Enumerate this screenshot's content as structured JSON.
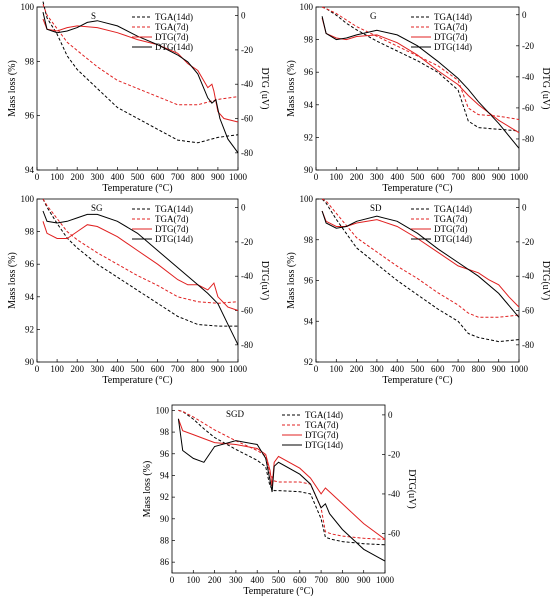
{
  "colors": {
    "tga": "#d42020",
    "dtg": "#000000",
    "red": "#e02020",
    "black": "#000000"
  },
  "chart_data": [
    {
      "type": "line",
      "title": "S",
      "xlabel": "Temperature (°C)",
      "ylabel": "Mass loss (%)",
      "y2label": "DTG (uV)",
      "xlim": [
        0,
        1000
      ],
      "ylim": [
        94,
        100
      ],
      "y2lim": [
        -90,
        5
      ],
      "xticks": [
        0,
        100,
        200,
        300,
        400,
        500,
        600,
        700,
        800,
        900,
        1000
      ],
      "yticks": [
        94,
        96,
        98,
        100
      ],
      "y2ticks": [
        0,
        -20,
        -40,
        -60,
        -80
      ],
      "legend_position": "top-right",
      "series": [
        {
          "name": "TGA(14d)",
          "axis": "left",
          "color": "black",
          "dash": true,
          "x": [
            30,
            50,
            100,
            150,
            200,
            300,
            400,
            500,
            600,
            700,
            800,
            900,
            1000
          ],
          "y": [
            100.2,
            99.6,
            99.0,
            98.2,
            97.7,
            97.0,
            96.3,
            95.9,
            95.5,
            95.1,
            95.0,
            95.2,
            95.3
          ]
        },
        {
          "name": "TGA(7d)",
          "axis": "left",
          "color": "red",
          "dash": true,
          "x": [
            30,
            50,
            100,
            150,
            200,
            300,
            400,
            500,
            600,
            700,
            800,
            900,
            1000
          ],
          "y": [
            100.1,
            99.7,
            99.2,
            98.7,
            98.4,
            97.8,
            97.3,
            97.0,
            96.7,
            96.4,
            96.4,
            96.6,
            96.7
          ]
        },
        {
          "name": "DTG(7d)",
          "axis": "right",
          "color": "red",
          "dash": false,
          "x": [
            30,
            50,
            100,
            150,
            200,
            300,
            400,
            500,
            600,
            700,
            750,
            800,
            830,
            850,
            870,
            880,
            900,
            930,
            1000
          ],
          "y": [
            -2,
            -8,
            -9,
            -7,
            -6,
            -7,
            -10,
            -14,
            -17,
            -22,
            -28,
            -32,
            -38,
            -42,
            -40,
            -44,
            -56,
            -60,
            -62
          ]
        },
        {
          "name": "DTG(14d)",
          "axis": "right",
          "color": "black",
          "dash": false,
          "x": [
            30,
            50,
            100,
            150,
            200,
            250,
            300,
            400,
            500,
            600,
            700,
            750,
            800,
            850,
            870,
            890,
            910,
            950,
            1000
          ],
          "y": [
            2,
            -8,
            -10,
            -9,
            -7,
            -4,
            -3,
            -6,
            -12,
            -17,
            -23,
            -27,
            -34,
            -48,
            -51,
            -49,
            -60,
            -72,
            -80
          ]
        }
      ]
    },
    {
      "type": "line",
      "title": "G",
      "xlabel": "Temperature (°C)",
      "ylabel": "Mass loss (%)",
      "y2label": "DTG (uV)",
      "xlim": [
        0,
        1000
      ],
      "ylim": [
        90,
        100
      ],
      "y2lim": [
        -100,
        5
      ],
      "xticks": [
        0,
        100,
        200,
        300,
        400,
        500,
        600,
        700,
        800,
        900,
        1000
      ],
      "yticks": [
        90,
        92,
        94,
        96,
        98,
        100
      ],
      "y2ticks": [
        0,
        -20,
        -40,
        -60,
        -80
      ],
      "legend_position": "top-right",
      "series": [
        {
          "name": "TGA(14d)",
          "axis": "left",
          "color": "black",
          "dash": true,
          "x": [
            30,
            50,
            100,
            150,
            200,
            300,
            400,
            500,
            600,
            700,
            750,
            800,
            900,
            1000
          ],
          "y": [
            100,
            99.9,
            99.5,
            99.0,
            98.6,
            97.9,
            97.3,
            96.7,
            96.0,
            94.9,
            93.0,
            92.6,
            92.5,
            92.4
          ]
        },
        {
          "name": "TGA(7d)",
          "axis": "left",
          "color": "red",
          "dash": true,
          "x": [
            30,
            50,
            100,
            150,
            200,
            300,
            400,
            500,
            600,
            700,
            750,
            800,
            900,
            1000
          ],
          "y": [
            100,
            99.9,
            99.6,
            99.2,
            98.8,
            98.2,
            97.6,
            97.0,
            96.4,
            95.5,
            93.8,
            93.4,
            93.3,
            93.1
          ]
        },
        {
          "name": "DTG(7d)",
          "axis": "right",
          "color": "red",
          "dash": false,
          "x": [
            30,
            50,
            100,
            150,
            200,
            300,
            400,
            500,
            600,
            700,
            750,
            800,
            900,
            1000
          ],
          "y": [
            -2,
            -12,
            -15,
            -16,
            -14,
            -13,
            -18,
            -26,
            -36,
            -45,
            -52,
            -58,
            -68,
            -76
          ]
        },
        {
          "name": "DTG(14d)",
          "axis": "right",
          "color": "black",
          "dash": false,
          "x": [
            30,
            50,
            100,
            150,
            200,
            300,
            400,
            500,
            600,
            700,
            750,
            800,
            900,
            1000
          ],
          "y": [
            -1,
            -12,
            -16,
            -15,
            -13,
            -10,
            -13,
            -20,
            -30,
            -41,
            -48,
            -56,
            -70,
            -86
          ]
        }
      ]
    },
    {
      "type": "line",
      "title": "SG",
      "xlabel": "Temperature (°C)",
      "ylabel": "Mass loss (%)",
      "y2label": "DTG(uV)",
      "xlim": [
        0,
        1000
      ],
      "ylim": [
        90,
        100
      ],
      "y2lim": [
        -90,
        5
      ],
      "xticks": [
        0,
        100,
        200,
        300,
        400,
        500,
        600,
        700,
        800,
        900,
        1000
      ],
      "yticks": [
        90,
        92,
        94,
        96,
        98,
        100
      ],
      "y2ticks": [
        0,
        -20,
        -40,
        -60,
        -80
      ],
      "legend_position": "top-right",
      "series": [
        {
          "name": "TGA(14d)",
          "axis": "left",
          "color": "black",
          "dash": true,
          "x": [
            30,
            50,
            100,
            150,
            200,
            300,
            400,
            500,
            600,
            700,
            800,
            900,
            1000
          ],
          "y": [
            100,
            99.5,
            98.5,
            97.6,
            97.0,
            96.0,
            95.2,
            94.4,
            93.6,
            92.8,
            92.3,
            92.2,
            92.2
          ]
        },
        {
          "name": "TGA(7d)",
          "axis": "left",
          "color": "red",
          "dash": true,
          "x": [
            30,
            50,
            100,
            150,
            200,
            300,
            400,
            500,
            600,
            700,
            800,
            900,
            1000
          ],
          "y": [
            100,
            99.6,
            98.8,
            98.0,
            97.5,
            96.7,
            96.0,
            95.3,
            94.7,
            94.0,
            93.7,
            93.6,
            93.7
          ]
        },
        {
          "name": "DTG(7d)",
          "axis": "right",
          "color": "red",
          "dash": false,
          "x": [
            30,
            50,
            100,
            150,
            200,
            250,
            300,
            400,
            500,
            600,
            700,
            750,
            800,
            850,
            880,
            900,
            950,
            1000
          ],
          "y": [
            -8,
            -15,
            -18,
            -18,
            -14,
            -10,
            -11,
            -17,
            -25,
            -33,
            -42,
            -45,
            -45,
            -48,
            -44,
            -52,
            -58,
            -60
          ]
        },
        {
          "name": "DTG(14d)",
          "axis": "right",
          "color": "black",
          "dash": false,
          "x": [
            30,
            50,
            100,
            150,
            200,
            250,
            300,
            400,
            500,
            600,
            700,
            800,
            850,
            900,
            950,
            1000
          ],
          "y": [
            -2,
            -8,
            -9,
            -8,
            -6,
            -4,
            -4,
            -8,
            -15,
            -25,
            -35,
            -45,
            -50,
            -56,
            -68,
            -80
          ]
        }
      ]
    },
    {
      "type": "line",
      "title": "SD",
      "xlabel": "Temperature (°C)",
      "ylabel": "Mass loss (%)",
      "y2label": "DTG(uV)",
      "xlim": [
        0,
        1000
      ],
      "ylim": [
        92,
        100
      ],
      "y2lim": [
        -90,
        5
      ],
      "xticks": [
        0,
        100,
        200,
        300,
        400,
        500,
        600,
        700,
        800,
        900,
        1000
      ],
      "yticks": [
        92,
        94,
        96,
        98,
        100
      ],
      "y2ticks": [
        0,
        -20,
        -40,
        -60,
        -80
      ],
      "legend_position": "top-right",
      "series": [
        {
          "name": "TGA(14d)",
          "axis": "left",
          "color": "black",
          "dash": true,
          "x": [
            30,
            50,
            100,
            150,
            200,
            300,
            400,
            500,
            600,
            700,
            750,
            800,
            900,
            1000
          ],
          "y": [
            100,
            99.8,
            99.0,
            98.3,
            97.6,
            96.8,
            96.0,
            95.3,
            94.6,
            94.0,
            93.4,
            93.2,
            93.0,
            93.1
          ]
        },
        {
          "name": "TGA(7d)",
          "axis": "left",
          "color": "red",
          "dash": true,
          "x": [
            30,
            50,
            100,
            150,
            200,
            300,
            400,
            500,
            600,
            700,
            750,
            800,
            900,
            1000
          ],
          "y": [
            100,
            99.9,
            99.3,
            98.7,
            98.1,
            97.4,
            96.7,
            96.1,
            95.4,
            94.8,
            94.4,
            94.2,
            94.2,
            94.3
          ]
        },
        {
          "name": "DTG(7d)",
          "axis": "right",
          "color": "red",
          "dash": false,
          "x": [
            30,
            50,
            100,
            150,
            200,
            300,
            400,
            500,
            600,
            700,
            800,
            850,
            900,
            950,
            1000
          ],
          "y": [
            -2,
            -8,
            -11,
            -11,
            -9,
            -7,
            -11,
            -18,
            -26,
            -34,
            -38,
            -42,
            -45,
            -52,
            -58
          ]
        },
        {
          "name": "DTG(14d)",
          "axis": "right",
          "color": "black",
          "dash": false,
          "x": [
            30,
            50,
            100,
            150,
            200,
            300,
            400,
            500,
            600,
            700,
            800,
            900,
            1000
          ],
          "y": [
            -2,
            -9,
            -12,
            -11,
            -8,
            -5,
            -8,
            -15,
            -24,
            -32,
            -40,
            -50,
            -64
          ]
        }
      ]
    },
    {
      "type": "line",
      "title": "SGD",
      "xlabel": "Temperature (°C)",
      "ylabel": "Mass loss (%)",
      "y2label": "DTG(uV)",
      "xlim": [
        0,
        1000
      ],
      "ylim": [
        85,
        100.5
      ],
      "y2lim": [
        -80,
        5
      ],
      "xticks": [
        0,
        100,
        200,
        300,
        400,
        500,
        600,
        700,
        800,
        900,
        1000
      ],
      "yticks": [
        86,
        88,
        90,
        92,
        94,
        96,
        98,
        100
      ],
      "y2ticks": [
        0,
        -20,
        -40,
        -60
      ],
      "legend_position": "top-right",
      "series": [
        {
          "name": "TGA(14d)",
          "axis": "left",
          "color": "black",
          "dash": true,
          "x": [
            30,
            50,
            100,
            150,
            200,
            300,
            400,
            440,
            460,
            480,
            500,
            600,
            650,
            700,
            720,
            750,
            800,
            900,
            1000
          ],
          "y": [
            100,
            99.9,
            99.2,
            98.3,
            97.5,
            96.4,
            95.4,
            94.8,
            93.0,
            92.6,
            92.6,
            92.5,
            92.3,
            90.0,
            88.3,
            88.1,
            87.9,
            87.7,
            87.6
          ]
        },
        {
          "name": "TGA(7d)",
          "axis": "left",
          "color": "red",
          "dash": true,
          "x": [
            30,
            50,
            100,
            150,
            200,
            300,
            400,
            440,
            460,
            480,
            500,
            600,
            650,
            700,
            720,
            750,
            800,
            900,
            1000
          ],
          "y": [
            100,
            99.9,
            99.4,
            98.8,
            98.2,
            97.2,
            96.3,
            95.8,
            94.2,
            93.5,
            93.4,
            93.4,
            93.2,
            91.0,
            88.8,
            88.6,
            88.4,
            88.2,
            88.1
          ]
        },
        {
          "name": "DTG(7d)",
          "axis": "right",
          "color": "red",
          "dash": false,
          "x": [
            30,
            50,
            100,
            150,
            200,
            300,
            400,
            440,
            460,
            470,
            480,
            500,
            600,
            650,
            700,
            720,
            750,
            800,
            900,
            1000
          ],
          "y": [
            -2,
            -8,
            -10,
            -12,
            -14,
            -15,
            -17,
            -20,
            -28,
            -36,
            -24,
            -21,
            -27,
            -32,
            -40,
            -37,
            -40,
            -45,
            -55,
            -63
          ]
        },
        {
          "name": "DTG(14d)",
          "axis": "right",
          "color": "black",
          "dash": false,
          "x": [
            30,
            50,
            100,
            150,
            200,
            300,
            400,
            440,
            460,
            470,
            480,
            500,
            600,
            650,
            700,
            720,
            740,
            800,
            900,
            1000
          ],
          "y": [
            -2,
            -18,
            -22,
            -24,
            -16,
            -13,
            -15,
            -22,
            -33,
            -39,
            -26,
            -24,
            -30,
            -35,
            -47,
            -45,
            -50,
            -58,
            -68,
            -74
          ]
        }
      ]
    }
  ]
}
